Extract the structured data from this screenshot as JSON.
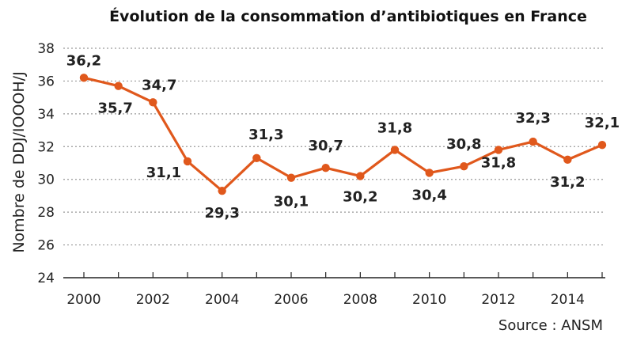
{
  "chart_data": {
    "type": "line",
    "title": "Évolution de la consommation d’antibiotiques en France",
    "ylabel": "Nombre de DDJ/IOOOH/J",
    "xlabel": "",
    "source": "Source : ANSM",
    "x": [
      2000,
      2001,
      2002,
      2003,
      2004,
      2005,
      2006,
      2007,
      2008,
      2009,
      2010,
      2011,
      2012,
      2013,
      2014,
      2015
    ],
    "values": [
      36.2,
      35.7,
      34.7,
      31.1,
      29.3,
      31.3,
      30.1,
      30.7,
      30.2,
      31.8,
      30.4,
      30.8,
      31.8,
      32.3,
      31.2,
      32.1
    ],
    "labels": [
      "36,2",
      "35,7",
      "34,7",
      "31,1",
      "29,3",
      "31,3",
      "30,1",
      "30,7",
      "30,2",
      "31,8",
      "30,4",
      "30,8",
      "31,8",
      "32,3",
      "31,2",
      "32,1"
    ],
    "xticks": [
      "2000",
      "2002",
      "2004",
      "2006",
      "2008",
      "2010",
      "2012",
      "2014"
    ],
    "yticks": [
      "24",
      "26",
      "28",
      "30",
      "32",
      "34",
      "36",
      "38"
    ],
    "ylim": [
      24,
      38
    ],
    "xlim": [
      2000,
      2015
    ],
    "grid": "horizontal dotted",
    "line_color": "#e0581c",
    "gridline_color": "#9a9a9a"
  }
}
